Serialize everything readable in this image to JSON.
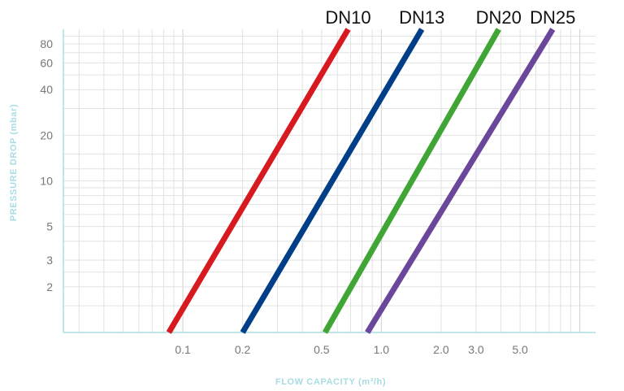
{
  "chart_data": {
    "type": "line",
    "xlabel": "FLOW CAPACITY (m³/h)",
    "ylabel": "PRESSURE DROP (mbar)",
    "x_scale": "log",
    "y_scale": "log",
    "xlim": [
      0.025,
      12
    ],
    "ylim": [
      1,
      100
    ],
    "x_ticks": [
      {
        "value": 0.1,
        "label": "0.1"
      },
      {
        "value": 0.2,
        "label": "0.2"
      },
      {
        "value": 0.5,
        "label": "0.5"
      },
      {
        "value": 1.0,
        "label": "1.0"
      },
      {
        "value": 2.0,
        "label": "2.0"
      },
      {
        "value": 3.0,
        "label": "3.0"
      },
      {
        "value": 5.0,
        "label": "5.0"
      }
    ],
    "y_ticks": [
      {
        "value": 2,
        "label": "2"
      },
      {
        "value": 3,
        "label": "3"
      },
      {
        "value": 5,
        "label": "5"
      },
      {
        "value": 10,
        "label": "10"
      },
      {
        "value": 20,
        "label": "20"
      },
      {
        "value": 40,
        "label": "40"
      },
      {
        "value": 60,
        "label": "60"
      },
      {
        "value": 80,
        "label": "80"
      }
    ],
    "grid": true,
    "series": [
      {
        "name": "DN10",
        "color": "#d71920",
        "x": [
          0.085,
          0.68
        ],
        "y": [
          1,
          100
        ]
      },
      {
        "name": "DN13",
        "color": "#003f87",
        "x": [
          0.2,
          1.6
        ],
        "y": [
          1,
          100
        ]
      },
      {
        "name": "DN20",
        "color": "#3fa535",
        "x": [
          0.52,
          3.9
        ],
        "y": [
          1,
          100
        ]
      },
      {
        "name": "DN25",
        "color": "#6a479b",
        "x": [
          0.85,
          7.3
        ],
        "y": [
          1,
          100
        ]
      }
    ]
  }
}
